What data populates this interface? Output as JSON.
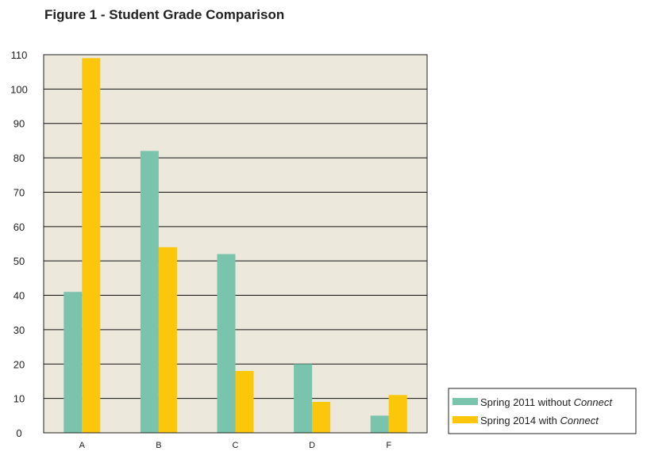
{
  "chart_data": {
    "type": "bar",
    "title": "Figure 1 - Student Grade Comparison",
    "xlabel": "",
    "ylabel": "",
    "categories": [
      "A",
      "B",
      "C",
      "D",
      "F"
    ],
    "ylim": [
      0,
      110
    ],
    "yticks": [
      0,
      10,
      20,
      30,
      40,
      50,
      60,
      70,
      80,
      90,
      100,
      110
    ],
    "grid": true,
    "legend_position": "bottom-right",
    "series": [
      {
        "name": "Spring 2011 without Connect",
        "name_prefix": "Spring 2011 without ",
        "name_emphasis": "Connect",
        "color": "#7ac4ad",
        "values": [
          41,
          82,
          52,
          20,
          5
        ]
      },
      {
        "name": "Spring 2014 with Connect",
        "name_prefix": "Spring 2014 with ",
        "name_emphasis": "Connect",
        "color": "#fcc60b",
        "values": [
          109,
          54,
          18,
          9,
          11
        ]
      }
    ],
    "colors": {
      "plot_background": "#ece8dc",
      "gridline": "#111111",
      "axis": "#222222"
    }
  }
}
